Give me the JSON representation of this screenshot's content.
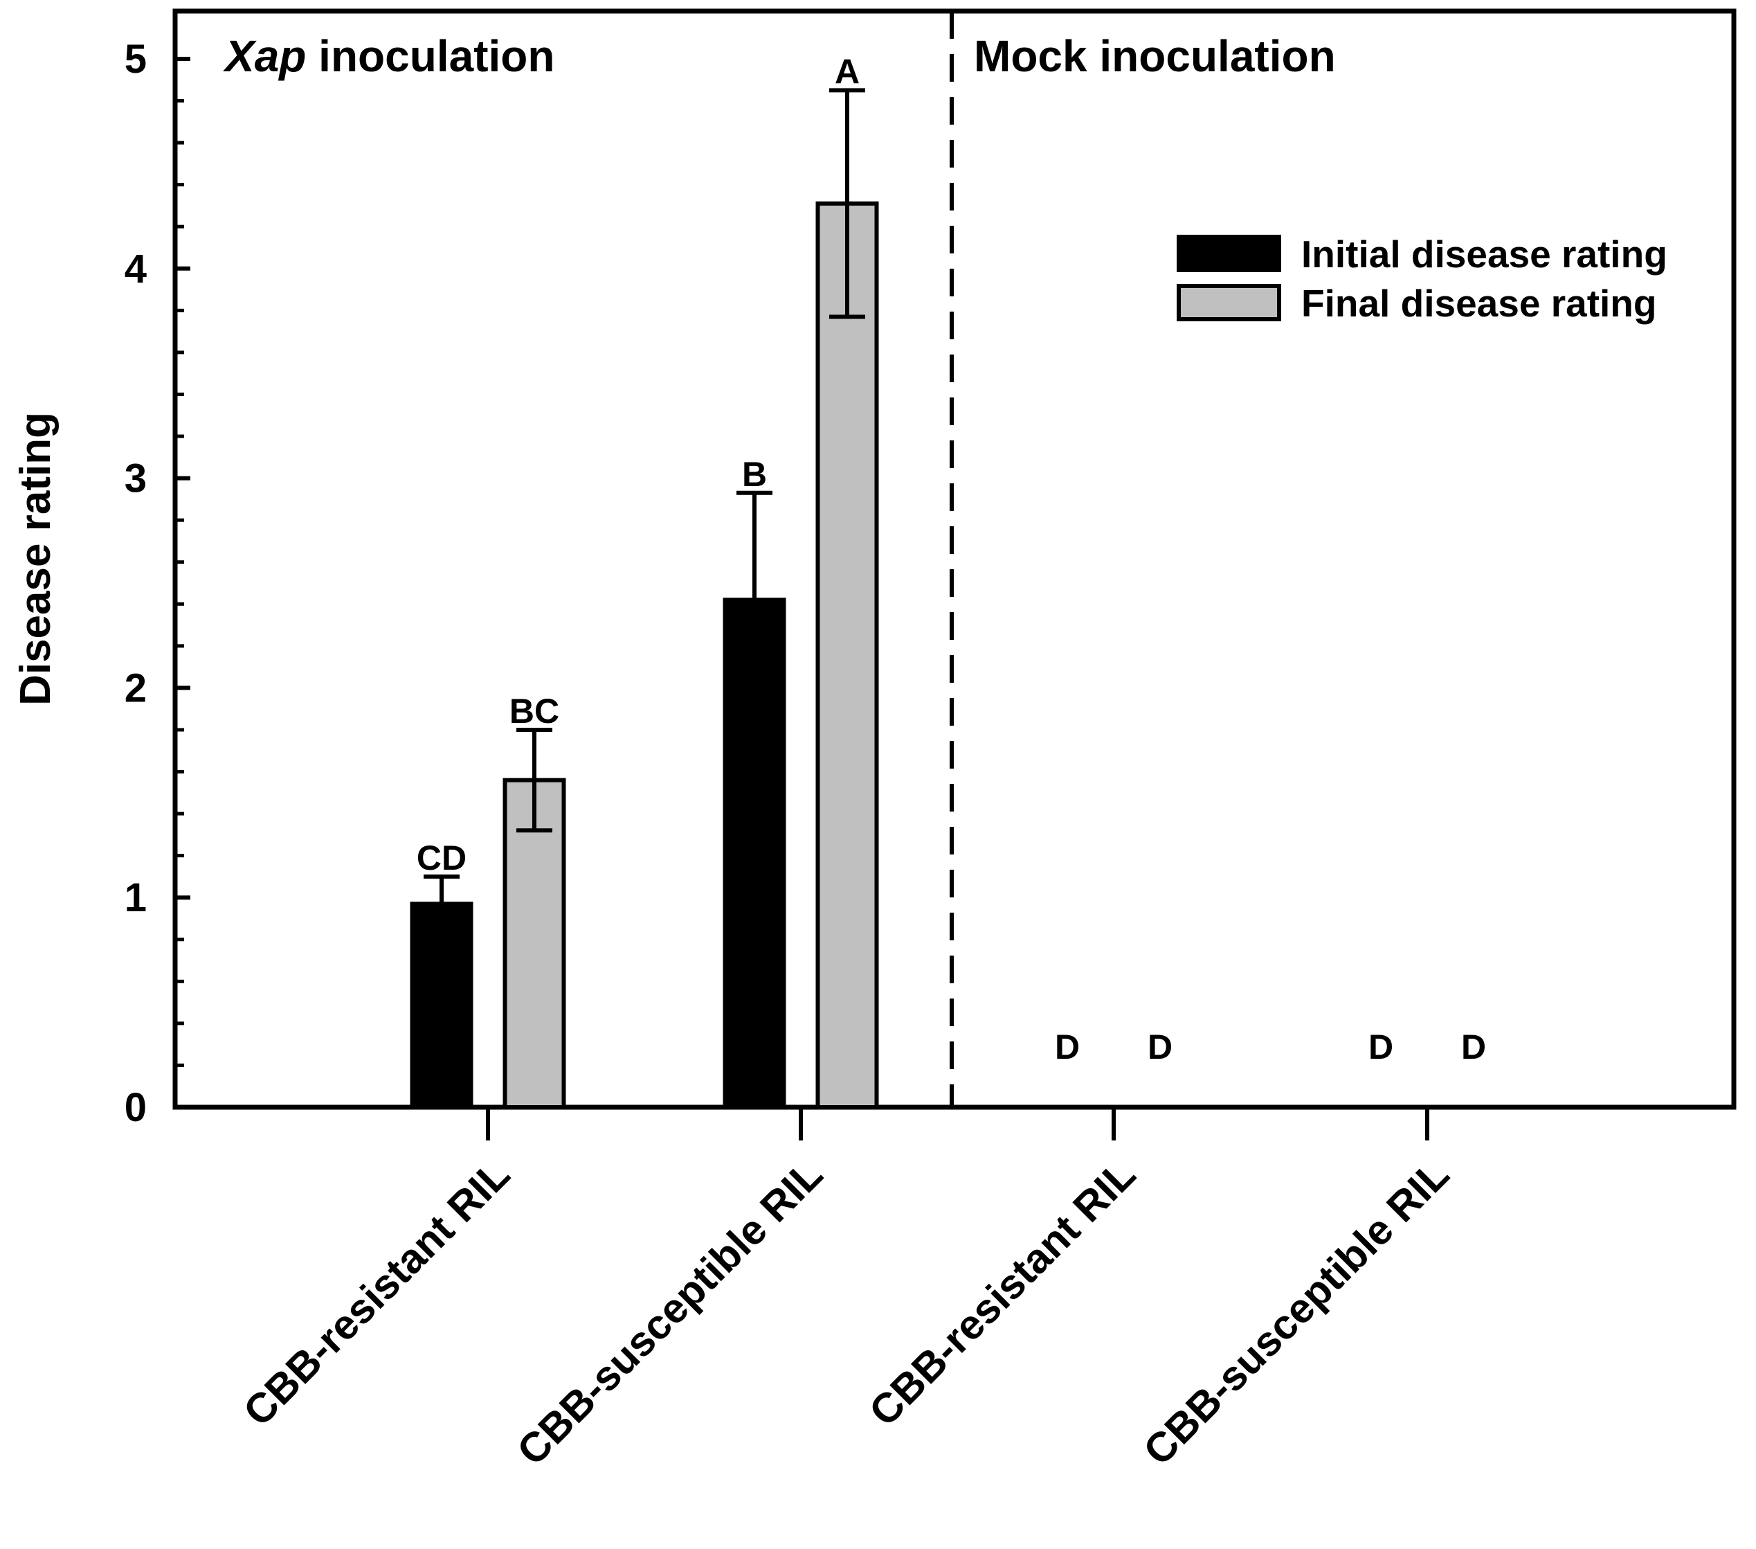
{
  "chart_data": {
    "type": "bar",
    "ylabel": "Disease rating",
    "ylim": [
      0,
      5
    ],
    "yticks": [
      "0",
      "1",
      "2",
      "3",
      "4",
      "5"
    ],
    "ytick_values": [
      0,
      1,
      2,
      3,
      4,
      5
    ],
    "y_minor_step": 0.2,
    "panels": [
      {
        "title_italic": "Xap",
        "title_rest": " inoculation"
      },
      {
        "title_italic": "",
        "title_rest": "Mock inoculation"
      }
    ],
    "categories": [
      "CBB-resistant RIL",
      "CBB-susceptible RIL",
      "CBB-resistant RIL",
      "CBB-susceptible RIL"
    ],
    "series": [
      {
        "name": "Initial disease rating",
        "color": "#000000",
        "values": [
          0.97,
          2.42,
          0,
          0
        ],
        "errors": [
          0.13,
          0.51,
          0,
          0
        ],
        "letters": [
          "CD",
          "B",
          "D",
          "D"
        ]
      },
      {
        "name": "Final disease rating",
        "color": "#c0c0c0",
        "values": [
          1.56,
          4.31,
          0,
          0
        ],
        "errors": [
          0.24,
          0.54,
          0,
          0
        ],
        "letters": [
          "BC",
          "A",
          "D",
          "D"
        ]
      }
    ],
    "legend_position": "top-right"
  }
}
